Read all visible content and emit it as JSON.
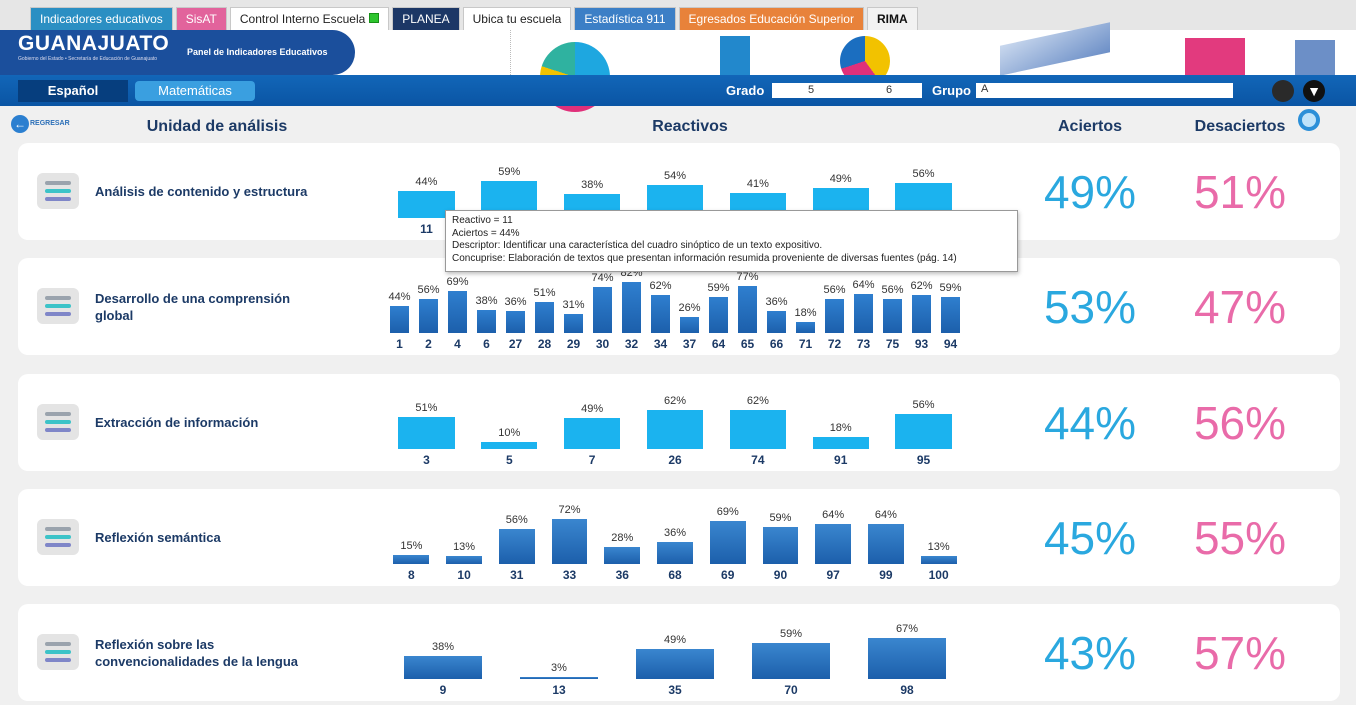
{
  "tabs": [
    {
      "label": "Indicadores educativos",
      "color": "#2b8fc3",
      "text_color": "#ffffff"
    },
    {
      "label": "SisAT",
      "color": "#e2639c",
      "text_color": "#ffffff"
    },
    {
      "label": "Control Interno Escuela",
      "color": "#ffffff",
      "text_color": "#222222"
    },
    {
      "label": "PLANEA",
      "color": "#1c3766",
      "text_color": "#ffffff"
    },
    {
      "label": "Ubica tu escuela",
      "color": "#ffffff",
      "text_color": "#222222"
    },
    {
      "label": "Estadística 911",
      "color": "#3c7fc6",
      "text_color": "#ffffff"
    },
    {
      "label": "Egresados Educación Superior",
      "color": "#e8823a",
      "text_color": "#ffffff"
    },
    {
      "label": "RIMA",
      "color": "#f2f2f2",
      "text_color": "#111111"
    }
  ],
  "header": {
    "logo": "GUANAJUATO",
    "logo_sub": "Gobierno del Estado • Secretaría de Educación de Guanajuato",
    "panel_title": "Panel de Indicadores Educativos"
  },
  "subjects": [
    "Español",
    "Matemáticas"
  ],
  "filters": {
    "grado_label": "Grado",
    "grado_values": [
      "5",
      "6"
    ],
    "grupo_label": "Grupo",
    "grupo_value": "A"
  },
  "back": "REGRESAR",
  "columns": [
    "Unidad de análisis",
    "Reactivos",
    "Aciertos",
    "Desaciertos"
  ],
  "rows": [
    {
      "name": "Análisis de contenido y estructura",
      "color": "#1bb3ef",
      "ids": [
        "11",
        null,
        null,
        null,
        null,
        null,
        null
      ],
      "values": [
        44,
        59,
        38,
        54,
        41,
        49,
        56
      ],
      "value_labels": [
        "44%",
        "59%",
        "38%",
        "54%",
        "41%",
        "49%",
        "56%"
      ],
      "aciertos": "49%",
      "desaciertos": "51%"
    },
    {
      "name": "Desarrollo de una comprensión global",
      "color": "#2f7fcf",
      "ids": [
        "1",
        "2",
        "4",
        "6",
        "27",
        "28",
        "29",
        "30",
        "32",
        "34",
        "37",
        "64",
        "65",
        "66",
        "71",
        "72",
        "73",
        "75",
        "93",
        "94"
      ],
      "values": [
        44,
        56,
        69,
        38,
        36,
        51,
        31,
        74,
        82,
        62,
        26,
        59,
        77,
        36,
        18,
        56,
        64,
        56,
        62,
        59
      ],
      "value_labels": [
        "44%",
        "56%",
        "69%",
        "38%",
        "36%",
        "51%",
        "31%",
        "74%",
        "82%",
        "62%",
        "26%",
        "59%",
        "77%",
        "36%",
        "18%",
        "56%",
        "64%",
        "56%",
        "62%",
        "59%"
      ],
      "aciertos": "53%",
      "desaciertos": "47%"
    },
    {
      "name": "Extracción de información",
      "color": "#1bb3ef",
      "ids": [
        "3",
        "5",
        "7",
        "26",
        "74",
        "91",
        "95"
      ],
      "values": [
        51,
        10,
        49,
        62,
        62,
        18,
        56
      ],
      "value_labels": [
        "51%",
        "10%",
        "49%",
        "62%",
        "62%",
        "18%",
        "56%"
      ],
      "aciertos": "44%",
      "desaciertos": "56%"
    },
    {
      "name": "Reflexión semántica",
      "color": "#3a86cf",
      "ids": [
        "8",
        "10",
        "31",
        "33",
        "36",
        "68",
        "69",
        "90",
        "97",
        "99",
        "100"
      ],
      "values": [
        15,
        13,
        56,
        72,
        28,
        36,
        69,
        59,
        64,
        64,
        13
      ],
      "value_labels": [
        "15%",
        "13%",
        "56%",
        "72%",
        "28%",
        "36%",
        "69%",
        "59%",
        "64%",
        "64%",
        "13%"
      ],
      "aciertos": "45%",
      "desaciertos": "55%"
    },
    {
      "name": "Reflexión sobre las convencionalidades de la lengua",
      "color": "#3a86cf",
      "ids": [
        "9",
        "13",
        "35",
        "70",
        "98"
      ],
      "values": [
        38,
        3,
        49,
        59,
        67
      ],
      "value_labels": [
        "38%",
        "3%",
        "49%",
        "59%",
        "67%"
      ],
      "aciertos": "43%",
      "desaciertos": "57%"
    }
  ],
  "tooltip": {
    "lines": [
      "Reactivo = 11",
      "Aciertos = 44%",
      "Descriptor: Identificar una característica del cuadro sinóptico de un texto expositivo.",
      "Concuprise: Elaboración de textos que presentan información resumida proveniente de diversas fuentes (pág. 14)"
    ]
  }
}
